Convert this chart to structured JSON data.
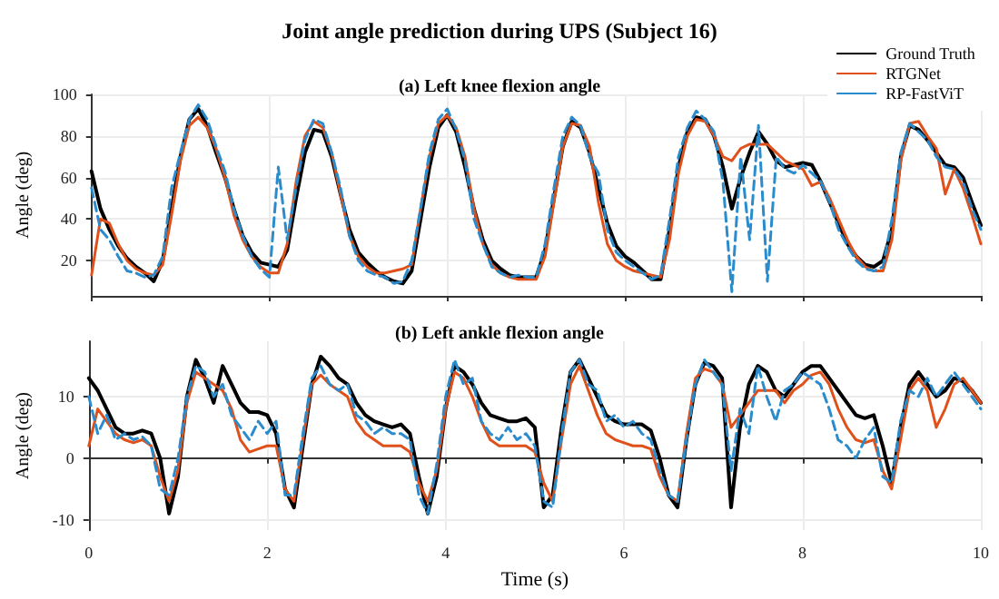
{
  "chart_data": [
    {
      "type": "line",
      "title": "Joint angle prediction during UPS (Subject 16)",
      "subtitle": "(a) Left knee flexion angle",
      "ylabel": "Angle (deg)",
      "x": [
        0,
        0.1,
        0.2,
        0.3,
        0.4,
        0.5,
        0.6,
        0.7,
        0.8,
        0.9,
        1,
        1.1,
        1.2,
        1.3,
        1.4,
        1.5,
        1.6,
        1.7,
        1.8,
        1.9,
        2,
        2.1,
        2.2,
        2.3,
        2.4,
        2.5,
        2.6,
        2.7,
        2.8,
        2.9,
        3,
        3.1,
        3.2,
        3.3,
        3.4,
        3.5,
        3.6,
        3.7,
        3.8,
        3.9,
        4,
        4.1,
        4.2,
        4.3,
        4.4,
        4.5,
        4.6,
        4.7,
        4.8,
        4.9,
        5,
        5.1,
        5.2,
        5.3,
        5.4,
        5.5,
        5.6,
        5.7,
        5.8,
        5.9,
        6,
        6.1,
        6.2,
        6.3,
        6.4,
        6.5,
        6.6,
        6.7,
        6.8,
        6.9,
        7,
        7.1,
        7.2,
        7.3,
        7.4,
        7.5,
        7.6,
        7.7,
        7.8,
        7.9,
        8,
        8.1,
        8.2,
        8.3,
        8.4,
        8.5,
        8.6,
        8.7,
        8.8,
        8.9,
        9,
        9.1,
        9.2,
        9.3,
        9.4,
        9.5,
        9.6,
        9.7,
        9.8,
        9.9,
        10
      ],
      "series": [
        {
          "name": "Ground Truth",
          "color": "#000000",
          "line_style": "solid",
          "values": [
            63,
            45,
            35,
            27,
            21,
            17,
            14,
            10,
            20,
            45,
            70,
            88,
            93,
            85,
            72,
            60,
            45,
            32,
            24,
            19,
            18,
            17,
            25,
            50,
            72,
            83,
            82,
            70,
            52,
            35,
            24,
            19,
            15,
            12,
            10,
            9,
            15,
            40,
            65,
            84,
            90,
            82,
            65,
            45,
            30,
            20,
            16,
            13,
            12,
            12,
            12,
            25,
            50,
            75,
            87,
            84,
            72,
            55,
            38,
            27,
            22,
            19,
            15,
            11,
            11,
            35,
            65,
            82,
            89,
            88,
            80,
            65,
            45,
            60,
            72,
            82,
            76,
            68,
            65,
            66,
            67,
            66,
            58,
            48,
            38,
            28,
            22,
            18,
            17,
            20,
            35,
            70,
            85,
            83,
            78,
            72,
            66,
            65,
            60,
            48,
            37
          ]
        },
        {
          "name": "RTGNet",
          "color": "#e0501a",
          "line_style": "solid",
          "values": [
            13,
            40,
            38,
            28,
            20,
            16,
            14,
            13,
            18,
            42,
            68,
            85,
            89,
            84,
            74,
            60,
            42,
            30,
            22,
            17,
            14,
            14,
            28,
            58,
            80,
            87,
            84,
            72,
            52,
            32,
            22,
            17,
            14,
            14,
            15,
            16,
            18,
            45,
            70,
            86,
            90,
            84,
            70,
            45,
            28,
            18,
            14,
            12,
            11,
            11,
            11,
            22,
            48,
            75,
            86,
            85,
            75,
            48,
            28,
            20,
            17,
            15,
            14,
            13,
            12,
            30,
            62,
            80,
            88,
            87,
            80,
            70,
            68,
            74,
            76,
            76,
            76,
            72,
            68,
            66,
            64,
            56,
            58,
            50,
            40,
            30,
            22,
            17,
            15,
            15,
            30,
            68,
            86,
            87,
            80,
            74,
            52,
            64,
            55,
            42,
            28
          ]
        },
        {
          "name": "RP-FastViT",
          "color": "#2a8ccc",
          "line_style": "dashed",
          "values": [
            55,
            35,
            30,
            22,
            15,
            14,
            12,
            13,
            22,
            55,
            72,
            88,
            95,
            88,
            75,
            63,
            45,
            32,
            22,
            16,
            12,
            65,
            30,
            55,
            78,
            88,
            86,
            72,
            55,
            32,
            20,
            15,
            13,
            12,
            9,
            10,
            20,
            45,
            72,
            88,
            93,
            83,
            68,
            40,
            28,
            17,
            14,
            12,
            13,
            12,
            12,
            28,
            55,
            80,
            89,
            85,
            70,
            62,
            35,
            24,
            20,
            17,
            14,
            11,
            13,
            40,
            70,
            84,
            92,
            88,
            82,
            58,
            5,
            70,
            30,
            85,
            10,
            70,
            64,
            62,
            66,
            62,
            58,
            48,
            35,
            27,
            20,
            16,
            15,
            17,
            40,
            72,
            86,
            82,
            78,
            70,
            65,
            64,
            58,
            45,
            35
          ]
        }
      ],
      "xlim": [
        0,
        10
      ],
      "xticks": [
        {
          "value": 0,
          "label": null
        },
        {
          "value": 2,
          "label": null
        },
        {
          "value": 4,
          "label": null
        },
        {
          "value": 6,
          "label": null
        },
        {
          "value": 8,
          "label": null
        },
        {
          "value": 10,
          "label": null
        }
      ],
      "ylim": [
        3,
        100
      ],
      "yticks": [
        20,
        40,
        60,
        80,
        100
      ],
      "tick_labels": "y",
      "grid": true,
      "legend": "top right",
      "marker": "none"
    },
    {
      "type": "line",
      "title": "(b) Left ankle flexion angle",
      "xlabel": "Time (s)",
      "ylabel": "Angle (deg)",
      "x": [
        0,
        0.1,
        0.2,
        0.3,
        0.4,
        0.5,
        0.6,
        0.7,
        0.8,
        0.9,
        1,
        1.1,
        1.2,
        1.3,
        1.4,
        1.5,
        1.6,
        1.7,
        1.8,
        1.9,
        2,
        2.1,
        2.2,
        2.3,
        2.4,
        2.5,
        2.6,
        2.7,
        2.8,
        2.9,
        3,
        3.1,
        3.2,
        3.3,
        3.4,
        3.5,
        3.6,
        3.7,
        3.8,
        3.9,
        4,
        4.1,
        4.2,
        4.3,
        4.4,
        4.5,
        4.6,
        4.7,
        4.8,
        4.9,
        5,
        5.1,
        5.2,
        5.3,
        5.4,
        5.5,
        5.6,
        5.7,
        5.8,
        5.9,
        6,
        6.1,
        6.2,
        6.3,
        6.4,
        6.5,
        6.6,
        6.7,
        6.8,
        6.9,
        7,
        7.1,
        7.2,
        7.3,
        7.4,
        7.5,
        7.6,
        7.7,
        7.8,
        7.9,
        8,
        8.1,
        8.2,
        8.3,
        8.4,
        8.5,
        8.6,
        8.7,
        8.8,
        8.9,
        9,
        9.1,
        9.2,
        9.3,
        9.4,
        9.5,
        9.6,
        9.7,
        9.8,
        9.9,
        10
      ],
      "series": [
        {
          "color": "#000000",
          "line_style": "solid",
          "values": [
            13,
            11,
            8,
            5,
            4,
            4,
            4.5,
            4,
            0,
            -9,
            -3,
            10,
            16,
            13,
            9,
            15,
            12,
            9,
            7.5,
            7.5,
            7,
            4,
            -5,
            -8,
            2,
            12,
            16.5,
            15,
            13,
            12,
            9,
            7,
            6,
            5.5,
            5,
            5.5,
            4,
            -3,
            -9,
            -3,
            8,
            15,
            14,
            12,
            9,
            7,
            6.5,
            6,
            6,
            6.5,
            5,
            -8,
            -6,
            5,
            14,
            16,
            13,
            10,
            7,
            6,
            5.5,
            5.5,
            5.5,
            4.5,
            0,
            -6,
            -8,
            3,
            12,
            15.5,
            15,
            13,
            -8,
            5,
            12,
            15,
            14,
            11,
            10,
            12,
            14,
            15,
            15,
            13,
            11,
            9,
            7,
            6.5,
            7,
            2,
            -4,
            5,
            12,
            14,
            12,
            10,
            11,
            13,
            12.5,
            11,
            9
          ]
        },
        {
          "color": "#e0501a",
          "line_style": "solid",
          "values": [
            2,
            8,
            6,
            4,
            3,
            2.5,
            3,
            2,
            -3,
            -7,
            -2,
            9,
            14,
            13,
            12,
            11,
            8,
            3,
            1,
            1.5,
            2,
            2,
            -5,
            -7,
            3,
            12,
            13.5,
            12,
            11,
            10,
            6,
            4,
            3,
            2,
            2,
            2,
            1,
            -4,
            -7,
            -2,
            8,
            14,
            13,
            10,
            6,
            3,
            2,
            2,
            2,
            2,
            1,
            -4,
            -7,
            3,
            12,
            15,
            11,
            7,
            4,
            3,
            2.5,
            2,
            2,
            1.5,
            -3,
            -6,
            -7,
            4,
            13,
            14.5,
            14,
            12,
            5,
            7,
            9,
            11,
            11,
            11,
            9,
            11,
            12,
            13.5,
            14,
            12,
            8,
            5,
            3,
            2.5,
            3,
            -2,
            -5,
            3,
            11,
            13,
            11,
            5,
            8,
            12,
            13,
            11,
            9
          ]
        },
        {
          "color": "#2a8ccc",
          "line_style": "dashed",
          "values": [
            10,
            4,
            7,
            3,
            4,
            3,
            3.5,
            2,
            -5,
            -6,
            0,
            10,
            15,
            14,
            10,
            12,
            7,
            5,
            3,
            6,
            4,
            6,
            -6,
            -6,
            4,
            13,
            15,
            12,
            11,
            12,
            7,
            6,
            4,
            5,
            4,
            4,
            3,
            -6,
            -9,
            -1,
            10,
            16,
            12,
            13,
            6,
            4,
            3,
            5,
            3,
            4,
            2,
            -7,
            -8,
            4,
            14,
            16,
            12,
            11,
            6,
            7,
            5,
            6,
            4,
            3,
            -2,
            -6,
            -7,
            3,
            12,
            16,
            14,
            12,
            -2,
            8,
            4,
            15,
            10,
            6,
            11,
            12,
            14,
            13,
            12,
            8,
            3,
            2,
            0,
            3,
            5,
            -3,
            -4,
            6,
            11,
            10,
            13,
            10,
            12,
            14,
            12,
            10,
            8
          ]
        }
      ],
      "xlim": [
        0,
        10
      ],
      "xticks": [
        0,
        2,
        4,
        6,
        8,
        10
      ],
      "ylim": [
        -11.7,
        19
      ],
      "yticks": [
        -10,
        0,
        10
      ],
      "grid": true,
      "marker": "none"
    }
  ]
}
